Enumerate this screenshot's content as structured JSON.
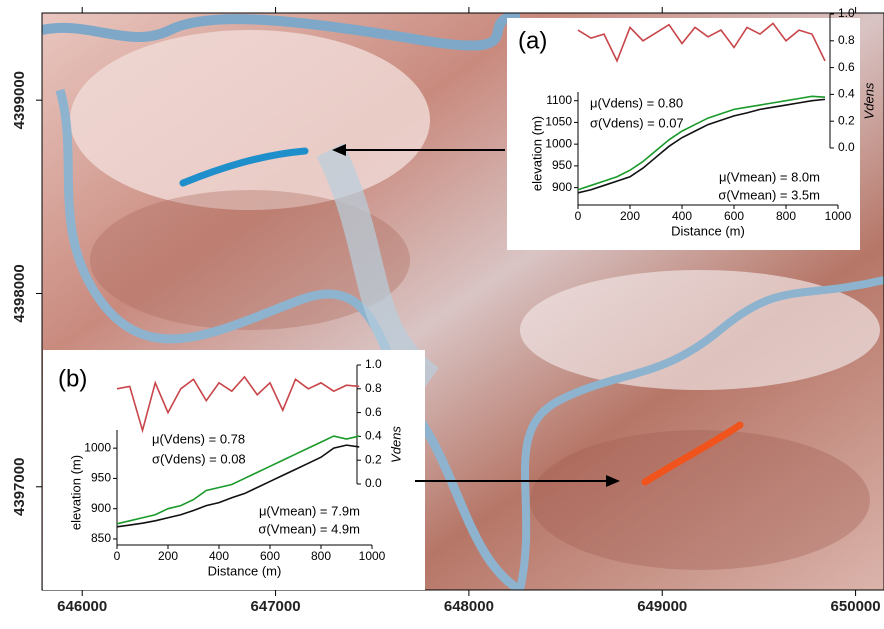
{
  "map": {
    "xlim": [
      645792,
      650147
    ],
    "ylim": [
      4396466,
      4399451
    ],
    "xticks": [
      646000,
      647000,
      648000,
      649000,
      650000
    ],
    "yticks": [
      4397000,
      4398000,
      4399000
    ]
  },
  "chart_data": [
    {
      "type": "line",
      "panel_label": "(a)",
      "x_label": "Distance (m)",
      "y_label": "elevation (m)",
      "y2_label": "Vdens",
      "x": [
        0,
        50,
        100,
        150,
        200,
        250,
        300,
        350,
        400,
        450,
        500,
        550,
        600,
        650,
        700,
        750,
        800,
        850,
        900,
        950
      ],
      "series": [
        {
          "color": "#1a9a2a",
          "values": [
            895,
            905,
            915,
            925,
            940,
            960,
            985,
            1010,
            1030,
            1045,
            1060,
            1070,
            1080,
            1085,
            1090,
            1095,
            1100,
            1105,
            1110,
            1108
          ]
        },
        {
          "color": "#111111",
          "values": [
            888,
            895,
            905,
            915,
            925,
            945,
            970,
            995,
            1015,
            1030,
            1045,
            1055,
            1065,
            1072,
            1080,
            1085,
            1090,
            1095,
            1100,
            1103
          ]
        },
        {
          "color": "#c8454a",
          "axis": "y2",
          "values": [
            0.88,
            0.82,
            0.85,
            0.65,
            0.9,
            0.8,
            0.86,
            0.92,
            0.78,
            0.9,
            0.83,
            0.88,
            0.75,
            0.9,
            0.85,
            0.93,
            0.8,
            0.88,
            0.85,
            0.65
          ]
        }
      ],
      "xlim": [
        0,
        1000
      ],
      "xticks": [
        0,
        200,
        400,
        600,
        800,
        1000
      ],
      "ylim": [
        860,
        1120
      ],
      "yticks": [
        900,
        950,
        1000,
        1050,
        1100
      ],
      "y2lim": [
        0,
        1
      ],
      "y2ticks": [
        {
          "value": 0,
          "label": "0.0"
        },
        0.2,
        0.4,
        0.6,
        0.8,
        {
          "value": 1,
          "label": "1.0"
        }
      ],
      "annotations": [
        "μ(Vdens) = 0.80",
        "σ(Vdens) = 0.07",
        "μ(Vmean) = 8.0m",
        "σ(Vmean) = 3.5m"
      ]
    },
    {
      "type": "line",
      "panel_label": "(b)",
      "x_label": "Distance (m)",
      "y_label": "elevation (m)",
      "y2_label": "Vdens",
      "x": [
        0,
        50,
        100,
        150,
        200,
        250,
        300,
        350,
        400,
        450,
        500,
        550,
        600,
        650,
        700,
        750,
        800,
        850,
        900,
        950
      ],
      "series": [
        {
          "color": "#1a9a2a",
          "values": [
            875,
            880,
            885,
            890,
            900,
            905,
            915,
            930,
            935,
            940,
            950,
            960,
            970,
            980,
            990,
            1000,
            1010,
            1020,
            1015,
            1020
          ]
        },
        {
          "color": "#111111",
          "values": [
            870,
            873,
            876,
            880,
            885,
            890,
            897,
            905,
            910,
            918,
            925,
            935,
            945,
            955,
            965,
            975,
            985,
            1000,
            1005,
            1002
          ]
        },
        {
          "color": "#c8454a",
          "axis": "y2",
          "values": [
            0.8,
            0.82,
            0.45,
            0.85,
            0.6,
            0.8,
            0.88,
            0.7,
            0.85,
            0.78,
            0.9,
            0.75,
            0.85,
            0.62,
            0.88,
            0.8,
            0.85,
            0.78,
            0.83,
            0.82
          ]
        }
      ],
      "xlim": [
        0,
        1000
      ],
      "xticks": [
        0,
        200,
        400,
        600,
        800,
        1000
      ],
      "ylim": [
        840,
        1030
      ],
      "yticks": [
        850,
        900,
        950,
        1000
      ],
      "y2lim": [
        0,
        1
      ],
      "y2ticks": [
        {
          "value": 0,
          "label": "0.0"
        },
        0.2,
        0.4,
        0.6,
        0.8,
        {
          "value": 1,
          "label": "1.0"
        }
      ],
      "annotations": [
        "μ(Vdens) = 0.78",
        "σ(Vdens) = 0.08",
        "μ(Vmean) = 7.9m",
        "σ(Vmean) = 4.9m"
      ]
    }
  ]
}
